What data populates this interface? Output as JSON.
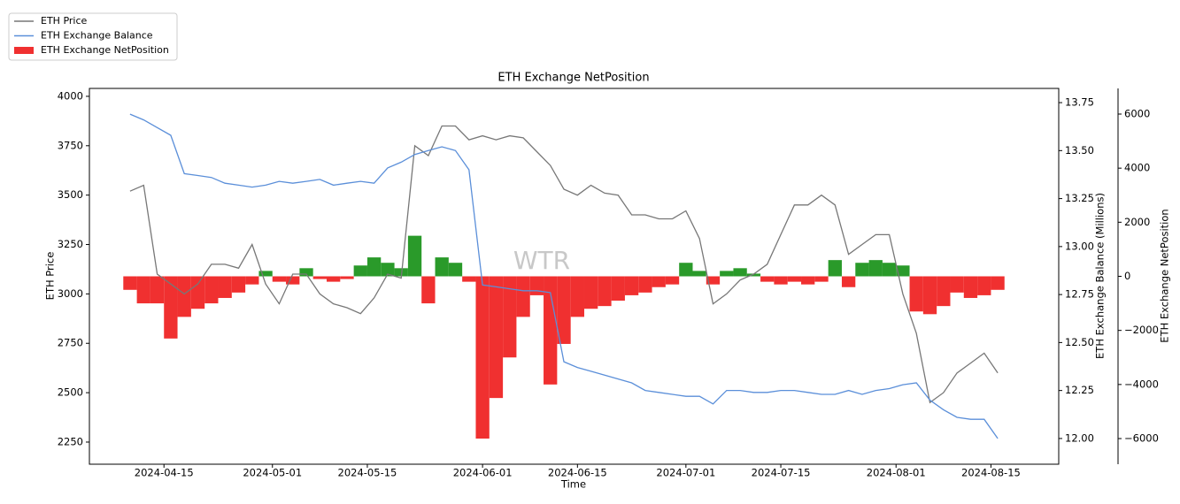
{
  "chart_data": {
    "type": "combo",
    "title": "ETH Exchange NetPosition",
    "xlabel": "Time",
    "ylabel": "ETH Price",
    "y2label": "ETH Exchange Balance (Millions)",
    "y3label": "ETH Exchange NetPosition",
    "watermark": "WTR",
    "legend": "upper left",
    "x": [
      "2024-04-10",
      "2024-04-12",
      "2024-04-14",
      "2024-04-16",
      "2024-04-18",
      "2024-04-20",
      "2024-04-22",
      "2024-04-24",
      "2024-04-26",
      "2024-04-28",
      "2024-04-30",
      "2024-05-02",
      "2024-05-04",
      "2024-05-06",
      "2024-05-08",
      "2024-05-10",
      "2024-05-12",
      "2024-05-14",
      "2024-05-16",
      "2024-05-18",
      "2024-05-20",
      "2024-05-22",
      "2024-05-24",
      "2024-05-26",
      "2024-05-28",
      "2024-05-30",
      "2024-06-01",
      "2024-06-03",
      "2024-06-05",
      "2024-06-07",
      "2024-06-09",
      "2024-06-11",
      "2024-06-13",
      "2024-06-15",
      "2024-06-17",
      "2024-06-19",
      "2024-06-21",
      "2024-06-23",
      "2024-06-25",
      "2024-06-27",
      "2024-06-29",
      "2024-07-01",
      "2024-07-03",
      "2024-07-05",
      "2024-07-07",
      "2024-07-09",
      "2024-07-11",
      "2024-07-13",
      "2024-07-15",
      "2024-07-17",
      "2024-07-19",
      "2024-07-21",
      "2024-07-23",
      "2024-07-25",
      "2024-07-27",
      "2024-07-29",
      "2024-07-31",
      "2024-08-02",
      "2024-08-04",
      "2024-08-06",
      "2024-08-08",
      "2024-08-10",
      "2024-08-12",
      "2024-08-14",
      "2024-08-16"
    ],
    "xlim": [
      "2024-04-04",
      "2024-08-25"
    ],
    "xticks": [
      "2024-04-15",
      "2024-05-01",
      "2024-05-15",
      "2024-06-01",
      "2024-06-15",
      "2024-07-01",
      "2024-07-15",
      "2024-08-01",
      "2024-08-15"
    ],
    "ylim": [
      2138,
      4040
    ],
    "yticks": [
      2250,
      2500,
      2750,
      3000,
      3250,
      3500,
      3750,
      4000
    ],
    "y2lim": [
      11.866,
      13.824
    ],
    "y2ticks": [
      {
        "value": 12,
        "label": "12.00"
      },
      12.25,
      {
        "value": 12.5,
        "label": "12.50"
      },
      12.75,
      {
        "value": 13,
        "label": "13.00"
      },
      13.25,
      {
        "value": 13.5,
        "label": "13.50"
      },
      13.75
    ],
    "y3lim": [
      -6948,
      6948
    ],
    "y3ticks": [
      {
        "value": -6000,
        "label": "−6000"
      },
      {
        "value": -4000,
        "label": "−4000"
      },
      {
        "value": -2000,
        "label": "−2000"
      },
      0,
      2000,
      4000,
      6000
    ],
    "series": [
      {
        "name": "ETH Price",
        "type": "line",
        "axis": "y",
        "color": "#777777",
        "values": [
          3520,
          3550,
          3100,
          3050,
          3000,
          3050,
          3150,
          3150,
          3130,
          3250,
          3050,
          2950,
          3100,
          3100,
          3000,
          2950,
          2930,
          2900,
          2980,
          3100,
          3080,
          3750,
          3700,
          3850,
          3850,
          3780,
          3800,
          3780,
          3800,
          3790,
          3720,
          3650,
          3530,
          3500,
          3550,
          3510,
          3500,
          3400,
          3400,
          3380,
          3380,
          3420,
          3280,
          2950,
          3000,
          3070,
          3100,
          3150,
          3300,
          3450,
          3450,
          3500,
          3450,
          3200,
          3250,
          3300,
          3300,
          3000,
          2800,
          2450,
          2500,
          2600,
          2650,
          2700,
          2600
        ]
      },
      {
        "name": "ETH Exchange Balance",
        "type": "line",
        "axis": "y2",
        "color": "#5b8fd9",
        "values": [
          13.69,
          13.66,
          13.62,
          13.58,
          13.38,
          13.37,
          13.36,
          13.33,
          13.32,
          13.31,
          13.32,
          13.34,
          13.33,
          13.34,
          13.35,
          13.32,
          13.33,
          13.34,
          13.33,
          13.41,
          13.44,
          13.48,
          13.5,
          13.52,
          13.5,
          13.4,
          12.8,
          12.79,
          12.78,
          12.77,
          12.77,
          12.76,
          12.4,
          12.37,
          12.35,
          12.33,
          12.31,
          12.29,
          12.25,
          12.24,
          12.23,
          12.22,
          12.22,
          12.18,
          12.25,
          12.25,
          12.24,
          12.24,
          12.25,
          12.25,
          12.24,
          12.23,
          12.23,
          12.25,
          12.23,
          12.25,
          12.26,
          12.28,
          12.29,
          12.2,
          12.15,
          12.11,
          12.1,
          12.1,
          12.0
        ]
      },
      {
        "name": "ETH Exchange NetPosition",
        "type": "bar",
        "axis": "y3",
        "color": "#f03030",
        "positive_color": "#2a9a2a",
        "values": [
          -500,
          -1000,
          -1000,
          -2300,
          -1500,
          -1200,
          -1000,
          -800,
          -600,
          -300,
          200,
          -200,
          -300,
          300,
          -100,
          -200,
          -100,
          400,
          700,
          500,
          300,
          1500,
          -1000,
          700,
          500,
          -200,
          -6000,
          -4500,
          -3000,
          -1500,
          -700,
          -4000,
          -2500,
          -1500,
          -1200,
          -1100,
          -900,
          -700,
          -600,
          -400,
          -300,
          500,
          200,
          -300,
          200,
          300,
          100,
          -200,
          -300,
          -200,
          -300,
          -200,
          600,
          -400,
          500,
          600,
          500,
          400,
          -1300,
          -1400,
          -1100,
          -600,
          -800,
          -700,
          -500
        ]
      }
    ]
  }
}
